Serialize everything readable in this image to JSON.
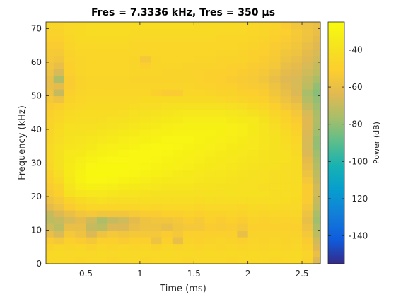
{
  "chart_data": {
    "type": "heatmap",
    "title": "Fres = 7.3336 kHz, Tres = 350 µs",
    "xlabel": "Time (ms)",
    "ylabel": "Frequency (kHz)",
    "colorbar_label": "Power (dB)",
    "xlim": [
      0.13,
      2.67
    ],
    "ylim": [
      0,
      72
    ],
    "clim": [
      -155,
      -25
    ],
    "x_ticks": [
      0.5,
      1,
      1.5,
      2,
      2.5
    ],
    "x_tick_labels": [
      "0.5",
      "1",
      "1.5",
      "2",
      "2.5"
    ],
    "y_ticks": [
      0,
      10,
      20,
      30,
      40,
      50,
      60,
      70
    ],
    "y_tick_labels": [
      "0",
      "10",
      "20",
      "30",
      "40",
      "50",
      "60",
      "70"
    ],
    "colorbar_ticks": [
      -40,
      -60,
      -80,
      -100,
      -120,
      -140
    ],
    "colorbar_tick_labels": [
      "-40",
      "-60",
      "-80",
      "-100",
      "-120",
      "-140"
    ],
    "colormap": "parula",
    "grid": false,
    "time_bins_ms": [
      0.15,
      0.25,
      0.35,
      0.45,
      0.55,
      0.65,
      0.75,
      0.85,
      0.95,
      1.05,
      1.15,
      1.25,
      1.35,
      1.45,
      1.55,
      1.65,
      1.75,
      1.85,
      1.95,
      2.05,
      2.15,
      2.25,
      2.35,
      2.45,
      2.55,
      2.65
    ],
    "freq_bins_khz": [
      1,
      3,
      5,
      7,
      9,
      11,
      13,
      15,
      17,
      19,
      21,
      23,
      25,
      27,
      29,
      31,
      33,
      35,
      37,
      39,
      41,
      43,
      45,
      47,
      49,
      51,
      53,
      55,
      57,
      59,
      61,
      63,
      65,
      67,
      69,
      71
    ],
    "power_db_rows_low_to_high_freq": [
      [
        -45,
        -45,
        -45,
        -46,
        -45,
        -45,
        -46,
        -45,
        -45,
        -46,
        -45,
        -45,
        -45,
        -46,
        -45,
        -45,
        -45,
        -46,
        -45,
        -45,
        -45,
        -46,
        -45,
        -45,
        -48,
        -65
      ],
      [
        -45,
        -44,
        -45,
        -44,
        -45,
        -44,
        -45,
        -44,
        -45,
        -44,
        -45,
        -44,
        -45,
        -44,
        -45,
        -44,
        -45,
        -44,
        -45,
        -44,
        -45,
        -44,
        -45,
        -44,
        -47,
        -60
      ],
      [
        -48,
        -46,
        -47,
        -46,
        -48,
        -46,
        -47,
        -46,
        -47,
        -46,
        -48,
        -46,
        -47,
        -46,
        -47,
        -46,
        -47,
        -46,
        -47,
        -46,
        -47,
        -46,
        -47,
        -46,
        -50,
        -65
      ],
      [
        -52,
        -55,
        -50,
        -52,
        -55,
        -50,
        -50,
        -52,
        -50,
        -50,
        -58,
        -50,
        -60,
        -48,
        -50,
        -48,
        -47,
        -48,
        -50,
        -47,
        -48,
        -47,
        -48,
        -47,
        -52,
        -68
      ],
      [
        -60,
        -66,
        -55,
        -58,
        -65,
        -58,
        -55,
        -56,
        -55,
        -55,
        -55,
        -52,
        -55,
        -50,
        -50,
        -50,
        -50,
        -50,
        -60,
        -48,
        -48,
        -48,
        -48,
        -48,
        -55,
        -72
      ],
      [
        -68,
        -72,
        -60,
        -60,
        -70,
        -72,
        -65,
        -65,
        -60,
        -58,
        -58,
        -60,
        -56,
        -55,
        -55,
        -52,
        -53,
        -52,
        -55,
        -50,
        -50,
        -50,
        -50,
        -50,
        -58,
        -75
      ],
      [
        -72,
        -70,
        -66,
        -62,
        -68,
        -75,
        -70,
        -68,
        -62,
        -58,
        -56,
        -56,
        -55,
        -52,
        -54,
        -50,
        -52,
        -50,
        -52,
        -48,
        -50,
        -48,
        -49,
        -48,
        -60,
        -78
      ],
      [
        -70,
        -65,
        -60,
        -56,
        -55,
        -56,
        -56,
        -56,
        -54,
        -52,
        -52,
        -50,
        -50,
        -48,
        -50,
        -48,
        -48,
        -47,
        -48,
        -46,
        -47,
        -46,
        -46,
        -46,
        -58,
        -76
      ],
      [
        -62,
        -58,
        -52,
        -48,
        -46,
        -46,
        -46,
        -46,
        -46,
        -45,
        -46,
        -45,
        -45,
        -45,
        -46,
        -45,
        -45,
        -45,
        -46,
        -44,
        -45,
        -44,
        -45,
        -45,
        -55,
        -72
      ],
      [
        -58,
        -54,
        -48,
        -44,
        -42,
        -41,
        -42,
        -42,
        -42,
        -42,
        -42,
        -42,
        -42,
        -42,
        -43,
        -42,
        -42,
        -42,
        -42,
        -42,
        -42,
        -42,
        -43,
        -44,
        -52,
        -70
      ],
      [
        -54,
        -50,
        -40,
        -37,
        -36,
        -36,
        -37,
        -38,
        -38,
        -39,
        -40,
        -40,
        -40,
        -40,
        -41,
        -40,
        -41,
        -40,
        -41,
        -40,
        -41,
        -42,
        -42,
        -43,
        -52,
        -68
      ],
      [
        -52,
        -48,
        -38,
        -33,
        -31,
        -32,
        -33,
        -34,
        -35,
        -36,
        -37,
        -38,
        -38,
        -38,
        -39,
        -39,
        -40,
        -40,
        -41,
        -41,
        -42,
        -42,
        -42,
        -43,
        -52,
        -68
      ],
      [
        -50,
        -44,
        -35,
        -30,
        -28,
        -28,
        -29,
        -30,
        -31,
        -33,
        -34,
        -35,
        -36,
        -36,
        -37,
        -38,
        -38,
        -39,
        -40,
        -41,
        -41,
        -42,
        -42,
        -43,
        -55,
        -70
      ],
      [
        -48,
        -42,
        -34,
        -30,
        -27,
        -27,
        -27,
        -28,
        -29,
        -30,
        -31,
        -33,
        -34,
        -35,
        -36,
        -37,
        -37,
        -38,
        -39,
        -40,
        -41,
        -42,
        -42,
        -43,
        -58,
        -72
      ],
      [
        -46,
        -40,
        -34,
        -31,
        -28,
        -27,
        -27,
        -27,
        -28,
        -29,
        -30,
        -31,
        -32,
        -33,
        -34,
        -35,
        -36,
        -37,
        -38,
        -39,
        -40,
        -41,
        -42,
        -43,
        -60,
        -74
      ],
      [
        -45,
        -40,
        -35,
        -33,
        -30,
        -29,
        -28,
        -28,
        -28,
        -28,
        -29,
        -30,
        -31,
        -32,
        -33,
        -34,
        -35,
        -36,
        -37,
        -38,
        -39,
        -40,
        -41,
        -43,
        -62,
        -76
      ],
      [
        -45,
        -40,
        -36,
        -35,
        -33,
        -31,
        -30,
        -29,
        -28,
        -28,
        -28,
        -29,
        -30,
        -31,
        -32,
        -33,
        -34,
        -35,
        -36,
        -37,
        -39,
        -40,
        -41,
        -44,
        -65,
        -78
      ],
      [
        -45,
        -41,
        -38,
        -37,
        -35,
        -33,
        -32,
        -31,
        -30,
        -29,
        -28,
        -28,
        -29,
        -30,
        -31,
        -32,
        -33,
        -34,
        -35,
        -36,
        -38,
        -40,
        -42,
        -45,
        -66,
        -80
      ],
      [
        -46,
        -42,
        -39,
        -38,
        -37,
        -36,
        -34,
        -33,
        -32,
        -31,
        -30,
        -29,
        -29,
        -29,
        -30,
        -31,
        -32,
        -33,
        -34,
        -36,
        -38,
        -40,
        -43,
        -46,
        -66,
        -80
      ],
      [
        -47,
        -43,
        -40,
        -40,
        -39,
        -38,
        -37,
        -35,
        -34,
        -33,
        -32,
        -31,
        -30,
        -30,
        -30,
        -30,
        -31,
        -32,
        -33,
        -35,
        -38,
        -41,
        -44,
        -48,
        -65,
        -78
      ],
      [
        -48,
        -44,
        -41,
        -41,
        -41,
        -40,
        -39,
        -38,
        -37,
        -35,
        -34,
        -33,
        -32,
        -31,
        -31,
        -31,
        -31,
        -32,
        -33,
        -35,
        -38,
        -42,
        -46,
        -50,
        -64,
        -76
      ],
      [
        -49,
        -46,
        -43,
        -42,
        -42,
        -42,
        -41,
        -40,
        -39,
        -38,
        -37,
        -35,
        -34,
        -33,
        -33,
        -33,
        -33,
        -34,
        -35,
        -36,
        -40,
        -44,
        -48,
        -52,
        -64,
        -75
      ],
      [
        -50,
        -47,
        -44,
        -43,
        -43,
        -43,
        -43,
        -42,
        -41,
        -40,
        -39,
        -38,
        -37,
        -36,
        -36,
        -36,
        -36,
        -37,
        -38,
        -40,
        -43,
        -47,
        -50,
        -55,
        -66,
        -76
      ],
      [
        -52,
        -50,
        -46,
        -45,
        -44,
        -44,
        -44,
        -44,
        -43,
        -42,
        -42,
        -41,
        -40,
        -40,
        -40,
        -40,
        -40,
        -41,
        -42,
        -44,
        -46,
        -50,
        -55,
        -58,
        -70,
        -78
      ],
      [
        -55,
        -58,
        -48,
        -46,
        -45,
        -45,
        -45,
        -45,
        -45,
        -44,
        -44,
        -44,
        -44,
        -44,
        -44,
        -44,
        -45,
        -46,
        -47,
        -48,
        -50,
        -54,
        -58,
        -62,
        -74,
        -80
      ],
      [
        -58,
        -70,
        -50,
        -47,
        -46,
        -46,
        -46,
        -46,
        -46,
        -46,
        -50,
        -52,
        -52,
        -46,
        -46,
        -47,
        -48,
        -48,
        -50,
        -51,
        -52,
        -56,
        -60,
        -65,
        -76,
        -82
      ],
      [
        -60,
        -62,
        -52,
        -48,
        -47,
        -47,
        -47,
        -47,
        -47,
        -47,
        -47,
        -47,
        -47,
        -47,
        -48,
        -49,
        -50,
        -50,
        -52,
        -53,
        -54,
        -58,
        -62,
        -66,
        -72,
        -80
      ],
      [
        -60,
        -75,
        -52,
        -48,
        -47,
        -47,
        -47,
        -47,
        -48,
        -48,
        -48,
        -48,
        -48,
        -48,
        -49,
        -50,
        -51,
        -52,
        -53,
        -54,
        -56,
        -60,
        -64,
        -66,
        -70,
        -76
      ],
      [
        -58,
        -66,
        -51,
        -47,
        -46,
        -46,
        -46,
        -46,
        -47,
        -47,
        -47,
        -48,
        -48,
        -48,
        -49,
        -50,
        -50,
        -51,
        -52,
        -53,
        -55,
        -58,
        -62,
        -64,
        -68,
        -72
      ],
      [
        -56,
        -60,
        -50,
        -47,
        -46,
        -46,
        -46,
        -46,
        -47,
        -50,
        -47,
        -47,
        -47,
        -48,
        -48,
        -48,
        -49,
        -50,
        -50,
        -52,
        -53,
        -55,
        -60,
        -62,
        -66,
        -70
      ],
      [
        -55,
        -56,
        -49,
        -47,
        -46,
        -46,
        -46,
        -46,
        -47,
        -55,
        -47,
        -46,
        -46,
        -46,
        -47,
        -47,
        -48,
        -48,
        -48,
        -50,
        -52,
        -54,
        -58,
        -60,
        -64,
        -68
      ],
      [
        -54,
        -54,
        -48,
        -46,
        -46,
        -46,
        -46,
        -46,
        -46,
        -46,
        -46,
        -46,
        -46,
        -46,
        -46,
        -46,
        -47,
        -47,
        -48,
        -50,
        -51,
        -53,
        -56,
        -58,
        -62,
        -66
      ],
      [
        -52,
        -52,
        -47,
        -45,
        -45,
        -45,
        -45,
        -45,
        -46,
        -46,
        -46,
        -46,
        -46,
        -46,
        -46,
        -46,
        -46,
        -46,
        -47,
        -48,
        -50,
        -52,
        -54,
        -56,
        -60,
        -64
      ],
      [
        -50,
        -50,
        -46,
        -44,
        -44,
        -44,
        -44,
        -44,
        -45,
        -45,
        -45,
        -45,
        -45,
        -45,
        -45,
        -45,
        -46,
        -46,
        -46,
        -47,
        -48,
        -50,
        -52,
        -55,
        -58,
        -62
      ],
      [
        -48,
        -48,
        -45,
        -44,
        -43,
        -43,
        -43,
        -43,
        -44,
        -44,
        -44,
        -44,
        -44,
        -44,
        -44,
        -44,
        -45,
        -45,
        -45,
        -46,
        -47,
        -49,
        -51,
        -54,
        -57,
        -60
      ],
      [
        -47,
        -47,
        -45,
        -44,
        -43,
        -43,
        -43,
        -43,
        -43,
        -43,
        -43,
        -43,
        -43,
        -43,
        -44,
        -44,
        -44,
        -44,
        -45,
        -46,
        -47,
        -48,
        -52,
        -56,
        -58,
        -60
      ]
    ]
  }
}
